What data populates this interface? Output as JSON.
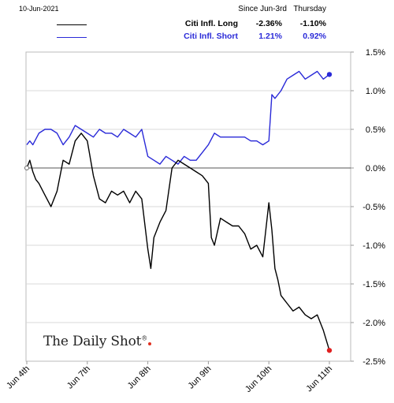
{
  "header": {
    "date": "10-Jun-2021",
    "col1": "Since Jun-3rd",
    "col2": "Thursday"
  },
  "logo": {
    "text": "The Daily Shot",
    "mark": "®"
  },
  "colors": {
    "long": "#000000",
    "short": "#2a2ad8",
    "end_long": "#e02020",
    "end_short": "#2a2ad8"
  },
  "chart_data": {
    "type": "line",
    "x_categories": [
      "Jun 4th",
      "Jun 7th",
      "Jun 8th",
      "Jun 9th",
      "Jun 10th",
      "Jun 11th"
    ],
    "y_ticks": [
      "1.5%",
      "1.0%",
      "0.5%",
      "0.0%",
      "-0.5%",
      "-1.0%",
      "-1.5%",
      "-2.0%",
      "-2.5%"
    ],
    "ylim": [
      -2.5,
      1.5
    ],
    "y_axis_side": "right",
    "series": [
      {
        "name": "Citi Infl. Long",
        "since": "-2.36%",
        "thursday": "-1.10%",
        "color": "#000000",
        "x": [
          0,
          0.05,
          0.1,
          0.15,
          0.2,
          0.3,
          0.4,
          0.5,
          0.6,
          0.7,
          0.8,
          0.9,
          1.0,
          1.1,
          1.2,
          1.3,
          1.4,
          1.5,
          1.6,
          1.7,
          1.8,
          1.9,
          2.0,
          2.05,
          2.1,
          2.2,
          2.3,
          2.4,
          2.5,
          2.6,
          2.7,
          2.8,
          2.9,
          3.0,
          3.05,
          3.1,
          3.2,
          3.3,
          3.4,
          3.5,
          3.6,
          3.7,
          3.8,
          3.9,
          4.0,
          4.05,
          4.1,
          4.15,
          4.2,
          4.3,
          4.4,
          4.5,
          4.6,
          4.7,
          4.8,
          4.9,
          5.0
        ],
        "y": [
          0.0,
          0.1,
          -0.05,
          -0.15,
          -0.2,
          -0.35,
          -0.5,
          -0.3,
          0.1,
          0.05,
          0.35,
          0.45,
          0.35,
          -0.1,
          -0.4,
          -0.45,
          -0.3,
          -0.35,
          -0.3,
          -0.45,
          -0.3,
          -0.4,
          -1.05,
          -1.3,
          -0.9,
          -0.7,
          -0.55,
          0.0,
          0.1,
          0.05,
          0.0,
          -0.05,
          -0.1,
          -0.2,
          -0.9,
          -1.0,
          -0.65,
          -0.7,
          -0.75,
          -0.75,
          -0.85,
          -1.05,
          -1.0,
          -1.15,
          -0.45,
          -0.8,
          -1.3,
          -1.45,
          -1.65,
          -1.75,
          -1.85,
          -1.8,
          -1.9,
          -1.95,
          -1.9,
          -2.1,
          -2.36
        ]
      },
      {
        "name": "Citi Infl. Short",
        "since": "1.21%",
        "thursday": "0.92%",
        "color": "#2a2ad8",
        "x": [
          0,
          0.05,
          0.1,
          0.2,
          0.3,
          0.4,
          0.5,
          0.6,
          0.7,
          0.8,
          0.9,
          1.0,
          1.1,
          1.2,
          1.3,
          1.4,
          1.5,
          1.6,
          1.7,
          1.8,
          1.9,
          2.0,
          2.1,
          2.2,
          2.3,
          2.4,
          2.5,
          2.6,
          2.7,
          2.8,
          2.9,
          3.0,
          3.1,
          3.2,
          3.3,
          3.4,
          3.5,
          3.6,
          3.7,
          3.8,
          3.9,
          4.0,
          4.05,
          4.1,
          4.2,
          4.3,
          4.4,
          4.5,
          4.6,
          4.7,
          4.8,
          4.9,
          5.0
        ],
        "y": [
          0.3,
          0.35,
          0.3,
          0.45,
          0.5,
          0.5,
          0.45,
          0.3,
          0.4,
          0.55,
          0.5,
          0.45,
          0.4,
          0.5,
          0.45,
          0.45,
          0.4,
          0.5,
          0.45,
          0.4,
          0.5,
          0.15,
          0.1,
          0.05,
          0.15,
          0.1,
          0.05,
          0.15,
          0.1,
          0.1,
          0.2,
          0.3,
          0.45,
          0.4,
          0.4,
          0.4,
          0.4,
          0.4,
          0.35,
          0.35,
          0.3,
          0.35,
          0.95,
          0.9,
          1.0,
          1.15,
          1.2,
          1.25,
          1.15,
          1.2,
          1.25,
          1.15,
          1.21
        ]
      }
    ]
  }
}
